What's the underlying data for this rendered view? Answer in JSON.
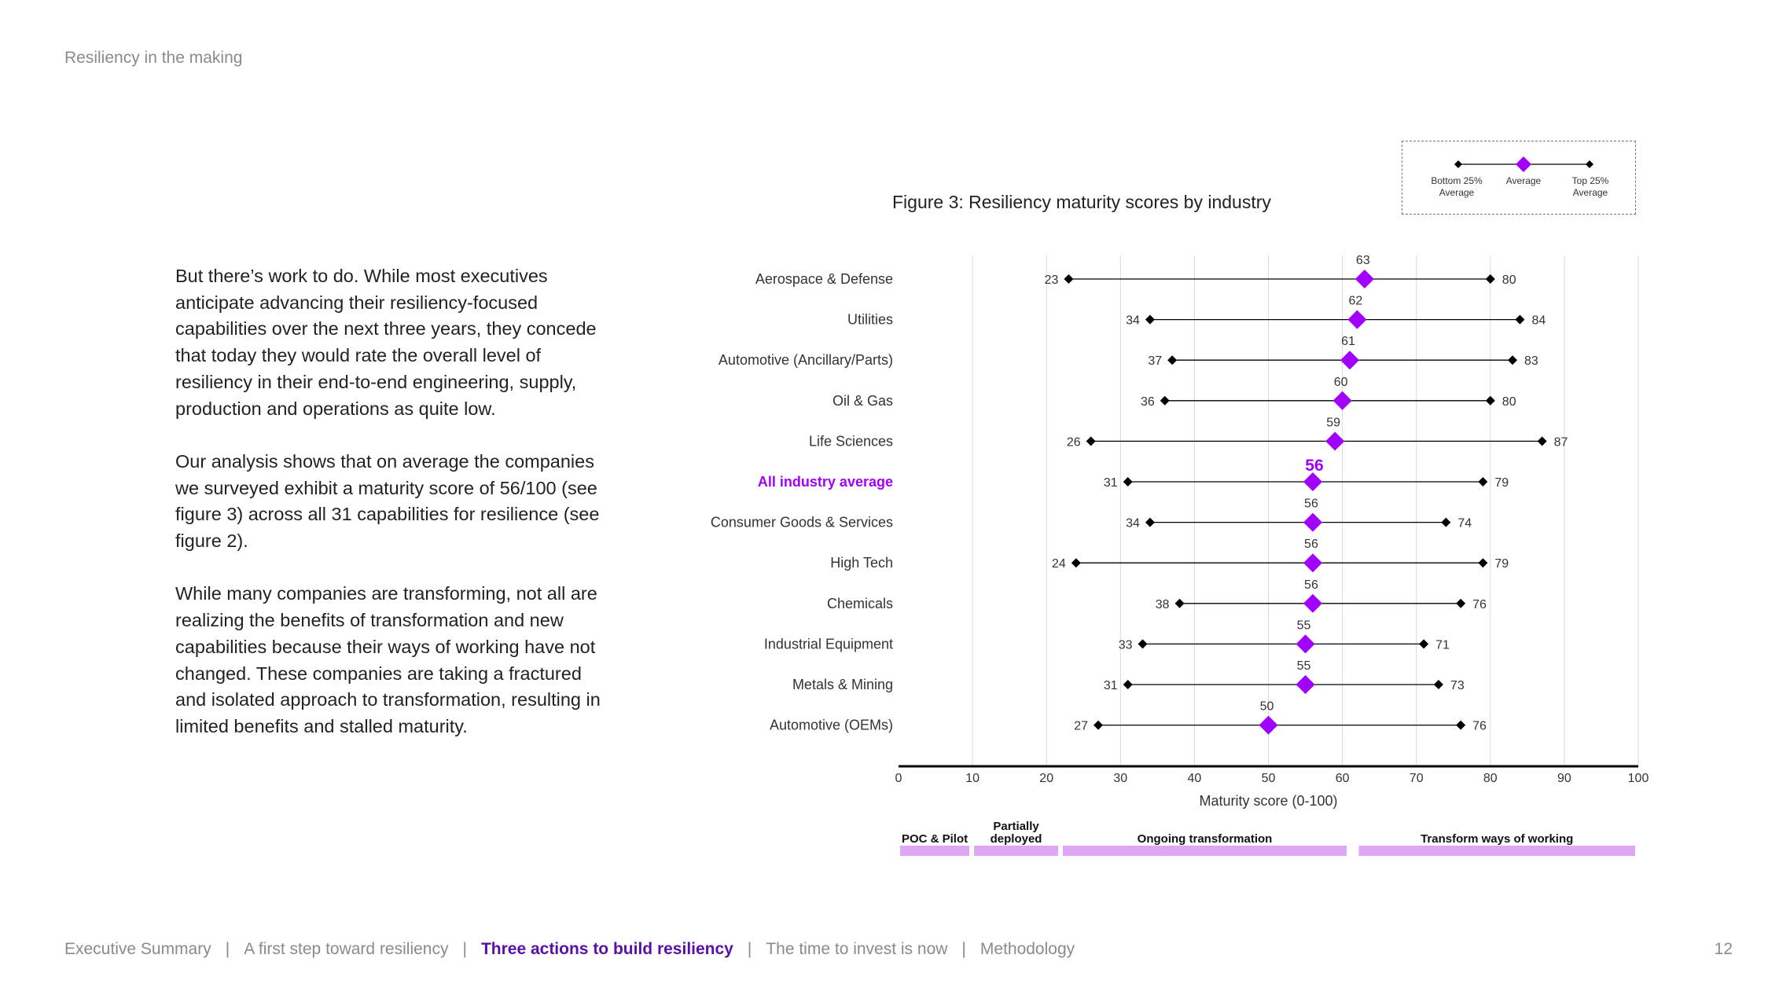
{
  "header": {
    "title": "Resiliency in the making"
  },
  "body_paragraphs": [
    "But there’s work to do. While most executives anticipate advancing their resiliency-focused capabilities over the next three years, they concede that today they would rate the overall level of resiliency in their end-to-end engineering, supply, production and operations as quite low.",
    "Our analysis shows that on average the companies we surveyed exhibit a maturity score of 56/100 (see figure 3) across all 31 capabilities for resilience (see figure 2).",
    "While many companies are transforming, not all are realizing the benefits of transformation and new capabilities because their ways of working have not changed. These companies are taking a fractured and isolated approach to transformation, resulting in limited benefits and stalled maturity."
  ],
  "figure_title": "Figure 3: Resiliency maturity scores by industry",
  "legend": {
    "bottom_label": [
      "Bottom 25%",
      "Average"
    ],
    "avg_label": "Average",
    "top_label": [
      "Top 25%",
      "Average"
    ]
  },
  "colors": {
    "accent": "#a100ff",
    "highlight_text": "#a100ff",
    "stage_bar": "#dfa6f5",
    "line": "#000000"
  },
  "chart_data": {
    "type": "dot-range",
    "title": "Figure 3: Resiliency maturity scores by industry",
    "xlabel": "Maturity score (0-100)",
    "xlim": [
      0,
      100
    ],
    "xticks": [
      0,
      10,
      20,
      30,
      40,
      50,
      60,
      70,
      80,
      90,
      100
    ],
    "highlight": "All industry average",
    "rows": [
      {
        "label": "Aerospace & Defense",
        "bottom": 23,
        "average": 63,
        "top": 80
      },
      {
        "label": "Utilities",
        "bottom": 34,
        "average": 62,
        "top": 84
      },
      {
        "label": "Automotive (Ancillary/Parts)",
        "bottom": 37,
        "average": 61,
        "top": 83
      },
      {
        "label": "Oil & Gas",
        "bottom": 36,
        "average": 60,
        "top": 80
      },
      {
        "label": "Life Sciences",
        "bottom": 26,
        "average": 59,
        "top": 87
      },
      {
        "label": "All industry average",
        "bottom": 31,
        "average": 56,
        "top": 79
      },
      {
        "label": "Consumer Goods & Services",
        "bottom": 34,
        "average": 56,
        "top": 74
      },
      {
        "label": "High Tech",
        "bottom": 24,
        "average": 56,
        "top": 79
      },
      {
        "label": "Chemicals",
        "bottom": 38,
        "average": 56,
        "top": 76
      },
      {
        "label": "Industrial Equipment",
        "bottom": 33,
        "average": 55,
        "top": 71
      },
      {
        "label": "Metals & Mining",
        "bottom": 31,
        "average": 55,
        "top": 73
      },
      {
        "label": "Automotive (OEMs)",
        "bottom": 27,
        "average": 50,
        "top": 76
      }
    ],
    "stages": [
      {
        "label": [
          "POC & Pilot"
        ],
        "from": 0,
        "to": 10
      },
      {
        "label": [
          "Partially",
          "deployed"
        ],
        "from": 10,
        "to": 22
      },
      {
        "label": [
          "Ongoing transformation"
        ],
        "from": 22,
        "to": 61
      },
      {
        "label": [
          "Transform ways of working"
        ],
        "from": 62,
        "to": 100
      }
    ]
  },
  "footer": {
    "items": [
      {
        "label": "Executive Summary",
        "active": false
      },
      {
        "label": "A first step toward resiliency",
        "active": false
      },
      {
        "label": "Three actions to build resiliency",
        "active": true
      },
      {
        "label": "The time to invest is now",
        "active": false
      },
      {
        "label": "Methodology",
        "active": false
      }
    ],
    "page_number": "12"
  }
}
